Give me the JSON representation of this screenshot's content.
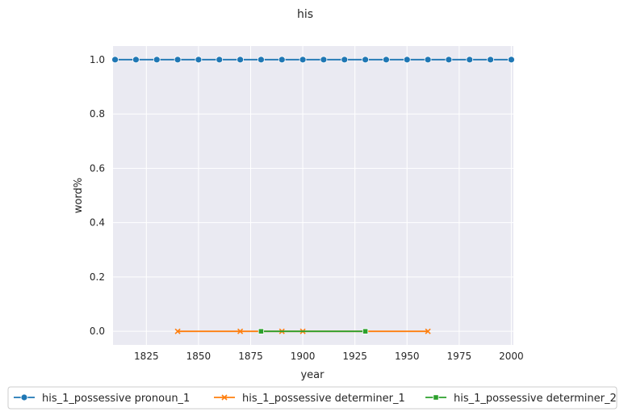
{
  "chart_data": {
    "type": "line",
    "title": "his",
    "xlabel": "year",
    "ylabel": "word%",
    "xlim": [
      1809,
      2001
    ],
    "ylim": [
      -0.05,
      1.05
    ],
    "xticks": [
      1825,
      1850,
      1875,
      1900,
      1925,
      1950,
      1975,
      2000
    ],
    "yticks": [
      0.0,
      0.2,
      0.4,
      0.6,
      0.8,
      1.0
    ],
    "xtick_labels": [
      "1825",
      "1850",
      "1875",
      "1900",
      "1925",
      "1950",
      "1975",
      "2000"
    ],
    "ytick_labels": [
      "0.0",
      "0.2",
      "0.4",
      "0.6",
      "0.8",
      "1.0"
    ],
    "grid": true,
    "legend_position": "bottom",
    "series": [
      {
        "name": "his_1_possessive pronoun_1",
        "color": "#1f77b4",
        "marker": "circle",
        "x": [
          1810,
          1820,
          1830,
          1840,
          1850,
          1860,
          1870,
          1880,
          1890,
          1900,
          1910,
          1920,
          1930,
          1940,
          1950,
          1960,
          1970,
          1980,
          1990,
          2000
        ],
        "y": [
          1.0,
          1.0,
          1.0,
          1.0,
          1.0,
          1.0,
          1.0,
          1.0,
          1.0,
          1.0,
          1.0,
          1.0,
          1.0,
          1.0,
          1.0,
          1.0,
          1.0,
          1.0,
          1.0,
          1.0
        ]
      },
      {
        "name": "his_1_possessive determiner_1",
        "color": "#ff7f0e",
        "marker": "x",
        "x": [
          1840,
          1870,
          1890,
          1900,
          1960
        ],
        "y": [
          0.0,
          0.0,
          0.0,
          0.0,
          0.0
        ]
      },
      {
        "name": "his_1_possessive determiner_2",
        "color": "#2ca02c",
        "marker": "square",
        "x": [
          1880,
          1930
        ],
        "y": [
          0.0,
          0.0
        ]
      }
    ]
  }
}
